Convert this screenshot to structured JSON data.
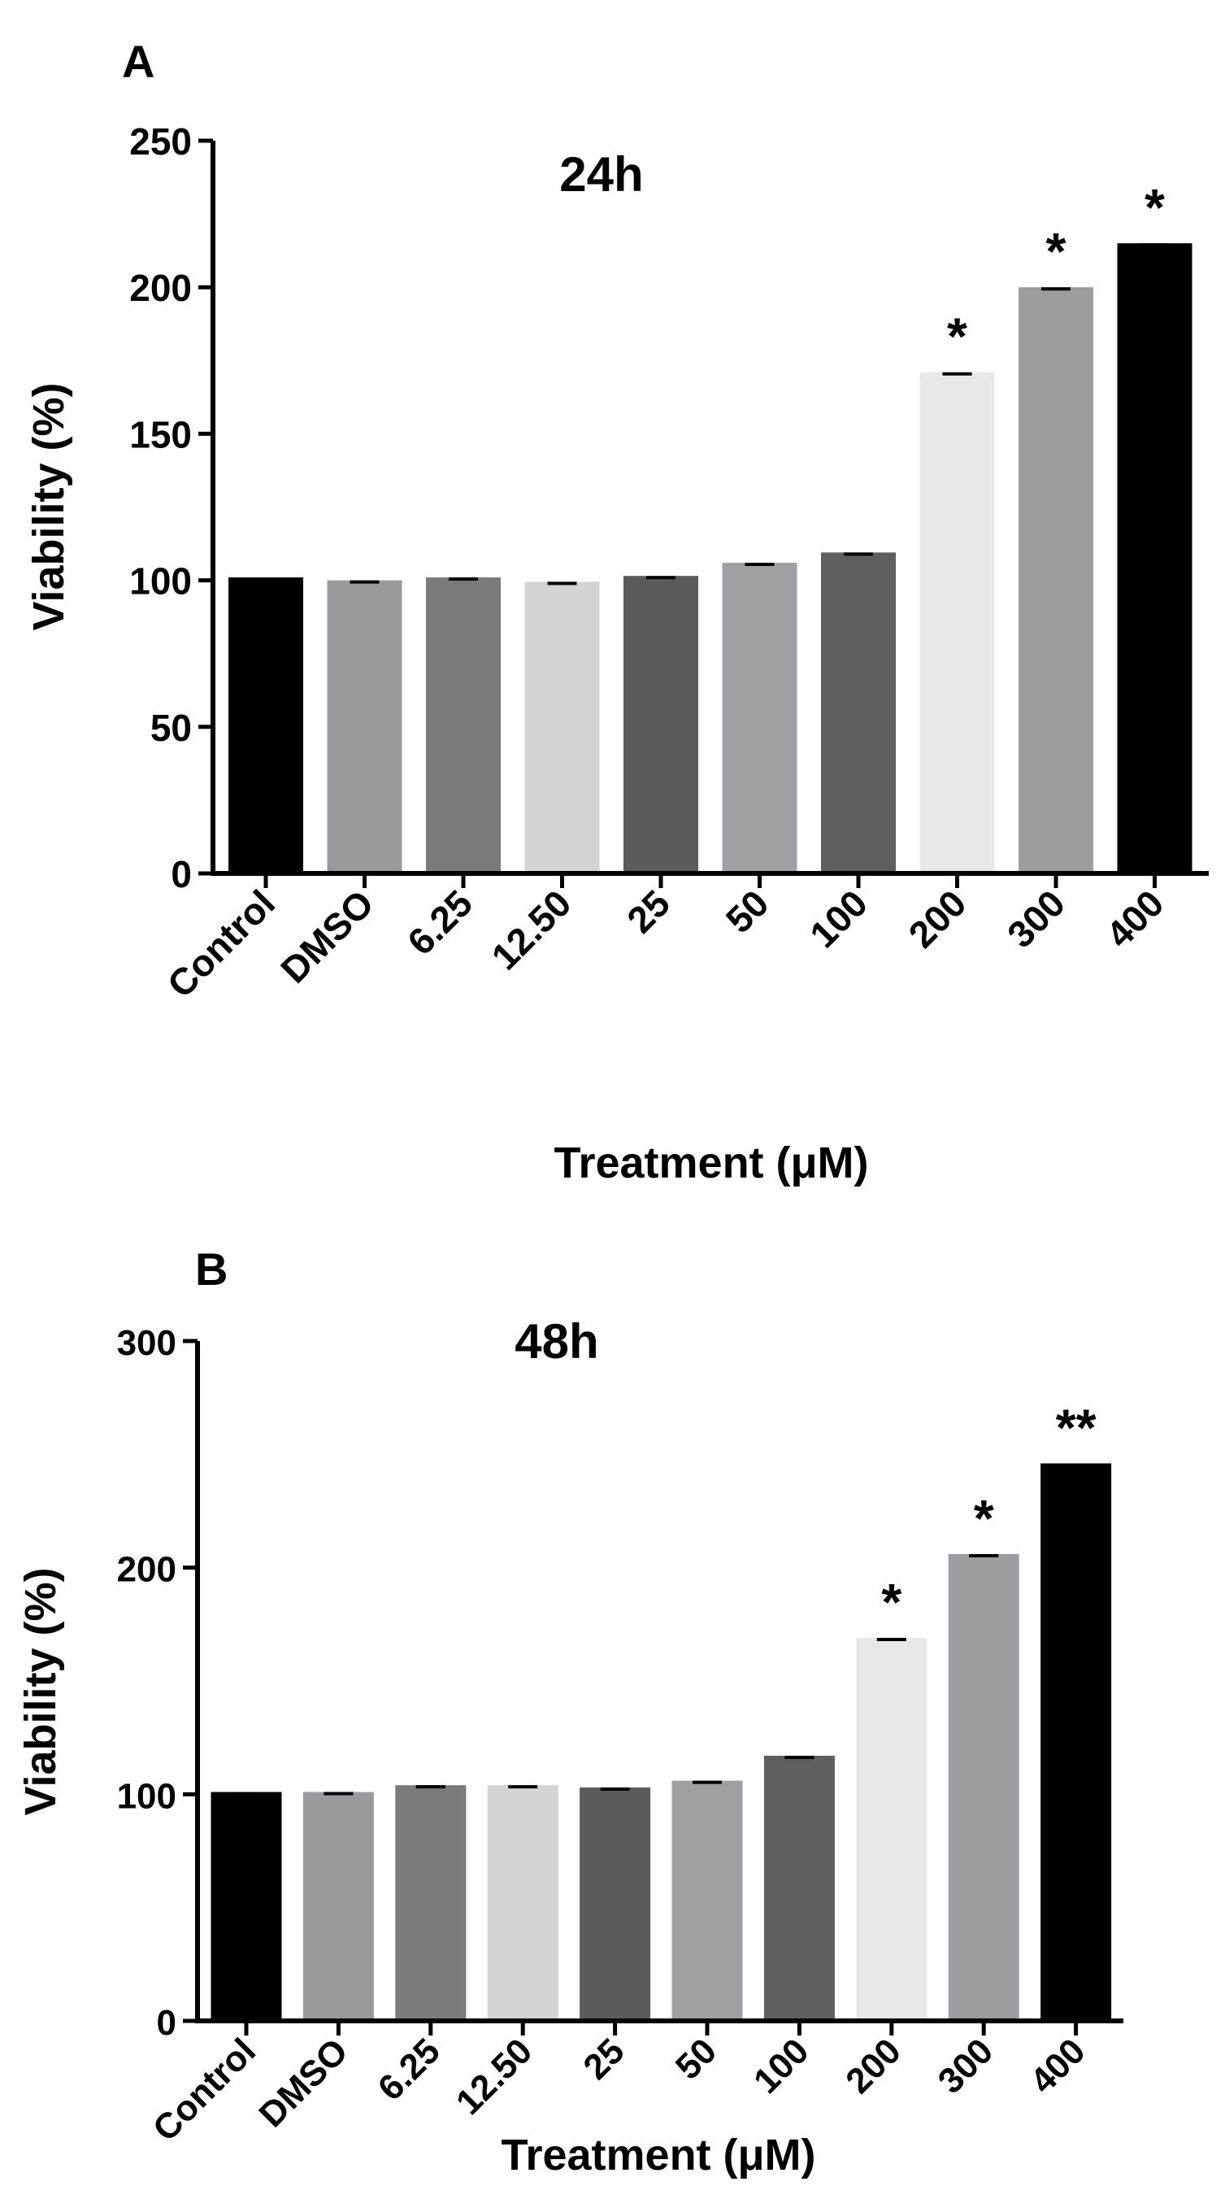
{
  "chart_data": [
    {
      "type": "bar",
      "panel_label": "A",
      "title": "24h",
      "xlabel": "Treatment (μM)",
      "ylabel": "Viability (%)",
      "ylim": [
        0,
        250
      ],
      "yticks": [
        0,
        50,
        100,
        150,
        200,
        250
      ],
      "categories": [
        "Control",
        "DMSO",
        "6.25",
        "12.50",
        "25",
        "50",
        "100",
        "200",
        "300",
        "400"
      ],
      "values": [
        101,
        100,
        101,
        99.5,
        101.5,
        106,
        109.5,
        171,
        200,
        215
      ],
      "significance": [
        "",
        "",
        "",
        "",
        "",
        "",
        "",
        "*",
        "*",
        "*"
      ],
      "colors": [
        "#000000",
        "#9a9a9c",
        "#7b7b7b",
        "#d4d4d4",
        "#5b5b5b",
        "#a0a0a3",
        "#5f5f5f",
        "#e8e8e8",
        "#9d9d9f",
        "#000000"
      ],
      "grid": false
    },
    {
      "type": "bar",
      "panel_label": "B",
      "title": "48h",
      "xlabel": "Treatment (μM)",
      "ylabel": "Viability (%)",
      "ylim": [
        0,
        300
      ],
      "yticks": [
        0,
        100,
        200,
        300
      ],
      "categories": [
        "Control",
        "DMSO",
        "6.25",
        "12.50",
        "25",
        "50",
        "100",
        "200",
        "300",
        "400"
      ],
      "values": [
        101,
        101,
        104,
        104,
        103,
        106,
        117,
        169,
        206,
        246
      ],
      "significance": [
        "",
        "",
        "",
        "",
        "",
        "",
        "",
        "*",
        "*",
        "**"
      ],
      "colors": [
        "#000000",
        "#9a9a9c",
        "#7b7b7b",
        "#d4d4d4",
        "#5b5b5b",
        "#a0a0a3",
        "#5f5f5f",
        "#e8e8e8",
        "#9d9d9f",
        "#000000"
      ],
      "grid": false
    }
  ]
}
